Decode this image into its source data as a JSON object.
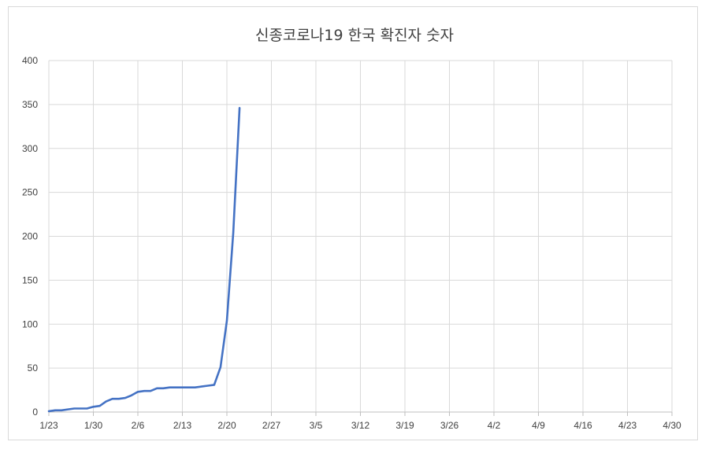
{
  "chart_data": {
    "type": "line",
    "title": "신종코로나19 한국 확진자 숫자",
    "xlabel": "",
    "ylabel": "",
    "x_tick_labels": [
      "1/23",
      "1/30",
      "2/6",
      "2/13",
      "2/20",
      "2/27",
      "3/5",
      "3/12",
      "3/19",
      "3/26",
      "4/2",
      "4/9",
      "4/16",
      "4/23",
      "4/30"
    ],
    "y_tick_labels": [
      "0",
      "50",
      "100",
      "150",
      "200",
      "250",
      "300",
      "350",
      "400"
    ],
    "ylim": [
      0,
      400
    ],
    "xlim_days_from_jan23": [
      0,
      98
    ],
    "grid": true,
    "legend": "none",
    "series": [
      {
        "color": "#4472c4",
        "x": [
          "1/20",
          "1/21",
          "1/22",
          "1/23",
          "1/24",
          "1/25",
          "1/26",
          "1/27",
          "1/28",
          "1/29",
          "1/30",
          "1/31",
          "2/1",
          "2/2",
          "2/3",
          "2/4",
          "2/5",
          "2/6",
          "2/7",
          "2/8",
          "2/9",
          "2/10",
          "2/11",
          "2/12",
          "2/13",
          "2/14",
          "2/15",
          "2/16",
          "2/17",
          "2/18",
          "2/19",
          "2/20",
          "2/21",
          "2/22"
        ],
        "values": [
          1,
          1,
          1,
          1,
          2,
          2,
          3,
          4,
          4,
          4,
          6,
          7,
          12,
          15,
          15,
          16,
          19,
          23,
          24,
          24,
          27,
          27,
          28,
          28,
          28,
          28,
          28,
          29,
          30,
          31,
          51,
          104,
          204,
          346
        ]
      }
    ]
  }
}
